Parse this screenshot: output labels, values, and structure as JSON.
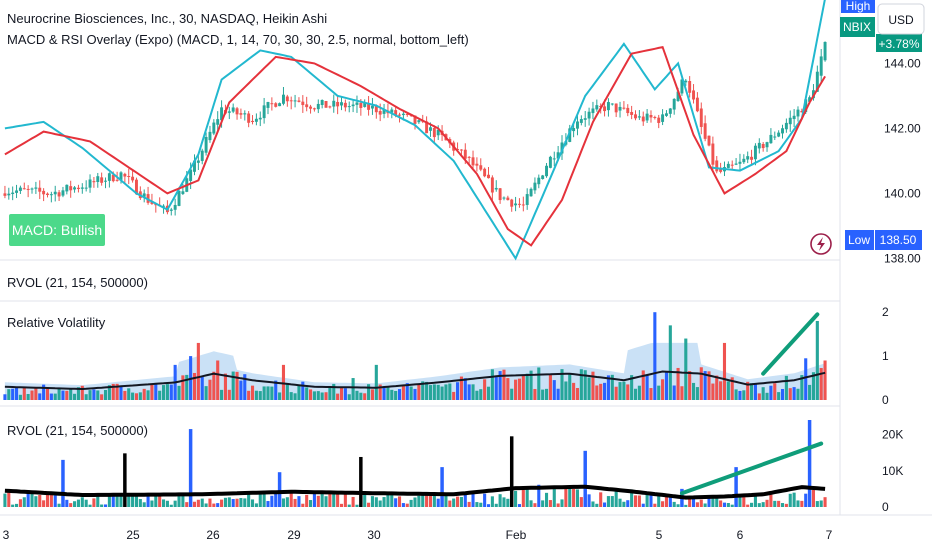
{
  "header": {
    "title": "Neurocrine Biosciences, Inc., 30, NASDAQ, Heikin Ashi",
    "indicator": "MACD & RSI Overlay (Expo) (MACD, 1, 14, 70, 30, 30, 2.5, normal, bottom_left)"
  },
  "badge": {
    "macd_text": "MACD: Bullish"
  },
  "price_tags": {
    "high_label": "High",
    "ticker": "NBIX",
    "change": "+3.78%",
    "low_label": "Low",
    "low_value": "138.50",
    "currency": "USD"
  },
  "panes": {
    "rvol_top_label": "RVOL (21, 154, 500000)",
    "rel_vol_label": "Relative Volatility",
    "rvol_bottom_label": "RVOL (21, 154, 500000)"
  },
  "colors": {
    "up": "#26a69a",
    "down": "#ef5350",
    "macd_line": "#22b8cf",
    "signal_line": "#e5323b",
    "badge_bg": "#4cd98a",
    "blue": "#2962ff",
    "teal_trend": "#0f9d7a",
    "area": "#9ec9ee"
  },
  "chart_data": [
    {
      "type": "candlestick",
      "title": "Neurocrine Biosciences, Inc., 30, NASDAQ, Heikin Ashi",
      "y_ticks": [
        "144.00",
        "142.00",
        "140.00",
        "138.00"
      ],
      "ylim": [
        137.95,
        145.95
      ],
      "x_ticks": [
        "3",
        "25",
        "26",
        "29",
        "30",
        "Feb",
        "5",
        "6",
        "7"
      ],
      "close_anchors": [
        [
          0,
          140.1
        ],
        [
          12,
          140.0
        ],
        [
          22,
          140.3
        ],
        [
          30,
          140.6
        ],
        [
          37,
          139.8
        ],
        [
          42,
          139.4
        ],
        [
          48,
          140.6
        ],
        [
          56,
          142.6
        ],
        [
          64,
          142.3
        ],
        [
          72,
          143.0
        ],
        [
          80,
          142.7
        ],
        [
          88,
          142.7
        ],
        [
          96,
          142.6
        ],
        [
          104,
          142.3
        ],
        [
          112,
          141.8
        ],
        [
          120,
          141.0
        ],
        [
          128,
          139.9
        ],
        [
          134,
          139.6
        ],
        [
          140,
          140.9
        ],
        [
          148,
          142.3
        ],
        [
          156,
          142.7
        ],
        [
          164,
          142.3
        ],
        [
          170,
          142.3
        ],
        [
          176,
          143.6
        ],
        [
          180,
          142.0
        ],
        [
          184,
          140.6
        ],
        [
          190,
          140.9
        ],
        [
          198,
          141.7
        ],
        [
          204,
          142.4
        ],
        [
          208,
          142.9
        ],
        [
          212,
          144.5
        ]
      ],
      "macd_line": [
        [
          0,
          142.0
        ],
        [
          10,
          142.2
        ],
        [
          20,
          141.4
        ],
        [
          34,
          140.0
        ],
        [
          42,
          139.5
        ],
        [
          50,
          141.2
        ],
        [
          56,
          143.5
        ],
        [
          66,
          144.4
        ],
        [
          74,
          144.2
        ],
        [
          86,
          143.0
        ],
        [
          96,
          142.7
        ],
        [
          106,
          142.1
        ],
        [
          116,
          141.0
        ],
        [
          124,
          139.5
        ],
        [
          132,
          138.0
        ],
        [
          140,
          140.2
        ],
        [
          150,
          143.0
        ],
        [
          160,
          144.6
        ],
        [
          168,
          143.2
        ],
        [
          174,
          144.0
        ],
        [
          182,
          140.8
        ],
        [
          190,
          140.7
        ],
        [
          200,
          141.3
        ],
        [
          206,
          142.3
        ],
        [
          212,
          146.0
        ]
      ],
      "signal_line": [
        [
          0,
          141.2
        ],
        [
          10,
          141.9
        ],
        [
          22,
          141.6
        ],
        [
          32,
          140.8
        ],
        [
          42,
          140.0
        ],
        [
          50,
          140.4
        ],
        [
          58,
          142.8
        ],
        [
          70,
          144.2
        ],
        [
          80,
          144.0
        ],
        [
          92,
          143.3
        ],
        [
          102,
          142.6
        ],
        [
          112,
          142.0
        ],
        [
          122,
          140.6
        ],
        [
          130,
          138.9
        ],
        [
          136,
          138.4
        ],
        [
          144,
          139.8
        ],
        [
          152,
          142.2
        ],
        [
          162,
          144.3
        ],
        [
          170,
          144.5
        ],
        [
          178,
          141.8
        ],
        [
          186,
          140.0
        ],
        [
          194,
          140.6
        ],
        [
          202,
          141.3
        ],
        [
          208,
          142.8
        ],
        [
          212,
          143.6
        ]
      ]
    },
    {
      "type": "bar",
      "title": "RVOL (21, 154, 500000)",
      "y_ticks": [],
      "note": "collapsed pane"
    },
    {
      "type": "bar",
      "title": "Relative Volatility",
      "y_ticks": [
        "2",
        "1",
        "0"
      ],
      "ylim": [
        0,
        2.05
      ],
      "spikes": [
        [
          10,
          0.35
        ],
        [
          44,
          0.8
        ],
        [
          48,
          1.0
        ],
        [
          50,
          1.3
        ],
        [
          55,
          0.9
        ],
        [
          72,
          0.8
        ],
        [
          90,
          0.5
        ],
        [
          96,
          0.8
        ],
        [
          126,
          0.7
        ],
        [
          168,
          2.0
        ],
        [
          172,
          1.7
        ],
        [
          176,
          1.4
        ],
        [
          186,
          1.3
        ],
        [
          202,
          0.55
        ],
        [
          207,
          0.95
        ],
        [
          210,
          1.8
        ],
        [
          212,
          0.9
        ]
      ],
      "mean_line": [
        [
          0,
          0.3
        ],
        [
          20,
          0.25
        ],
        [
          44,
          0.4
        ],
        [
          54,
          0.6
        ],
        [
          64,
          0.45
        ],
        [
          80,
          0.3
        ],
        [
          96,
          0.28
        ],
        [
          112,
          0.4
        ],
        [
          128,
          0.55
        ],
        [
          146,
          0.6
        ],
        [
          160,
          0.45
        ],
        [
          170,
          0.65
        ],
        [
          180,
          0.6
        ],
        [
          192,
          0.35
        ],
        [
          204,
          0.45
        ],
        [
          212,
          0.62
        ]
      ],
      "trend_line": [
        [
          196,
          0.6
        ],
        [
          210,
          1.95
        ]
      ]
    },
    {
      "type": "bar",
      "title": "RVOL (21, 154, 500000)",
      "y_ticks": [
        "20K",
        "10K",
        "0"
      ],
      "ylim": [
        0,
        24000
      ],
      "spikes": [
        [
          15,
          13000,
          "blue"
        ],
        [
          31,
          14800,
          "black"
        ],
        [
          48,
          21500,
          "blue"
        ],
        [
          71,
          9600,
          "blue"
        ],
        [
          92,
          13800,
          "black"
        ],
        [
          113,
          11000,
          "blue"
        ],
        [
          131,
          19500,
          "black"
        ],
        [
          150,
          15500,
          "blue"
        ],
        [
          175,
          5000,
          "blue"
        ],
        [
          189,
          11000,
          "blue"
        ],
        [
          208,
          24000,
          "blue"
        ]
      ],
      "mean_line": [
        [
          0,
          4500
        ],
        [
          20,
          3300
        ],
        [
          50,
          3500
        ],
        [
          74,
          4200
        ],
        [
          96,
          3800
        ],
        [
          116,
          3500
        ],
        [
          132,
          5200
        ],
        [
          150,
          5600
        ],
        [
          162,
          4300
        ],
        [
          176,
          2600
        ],
        [
          186,
          2900
        ],
        [
          196,
          3500
        ],
        [
          206,
          5500
        ],
        [
          212,
          5000
        ]
      ],
      "trend_line": [
        [
          175,
          3800
        ],
        [
          211,
          17500
        ]
      ]
    }
  ]
}
